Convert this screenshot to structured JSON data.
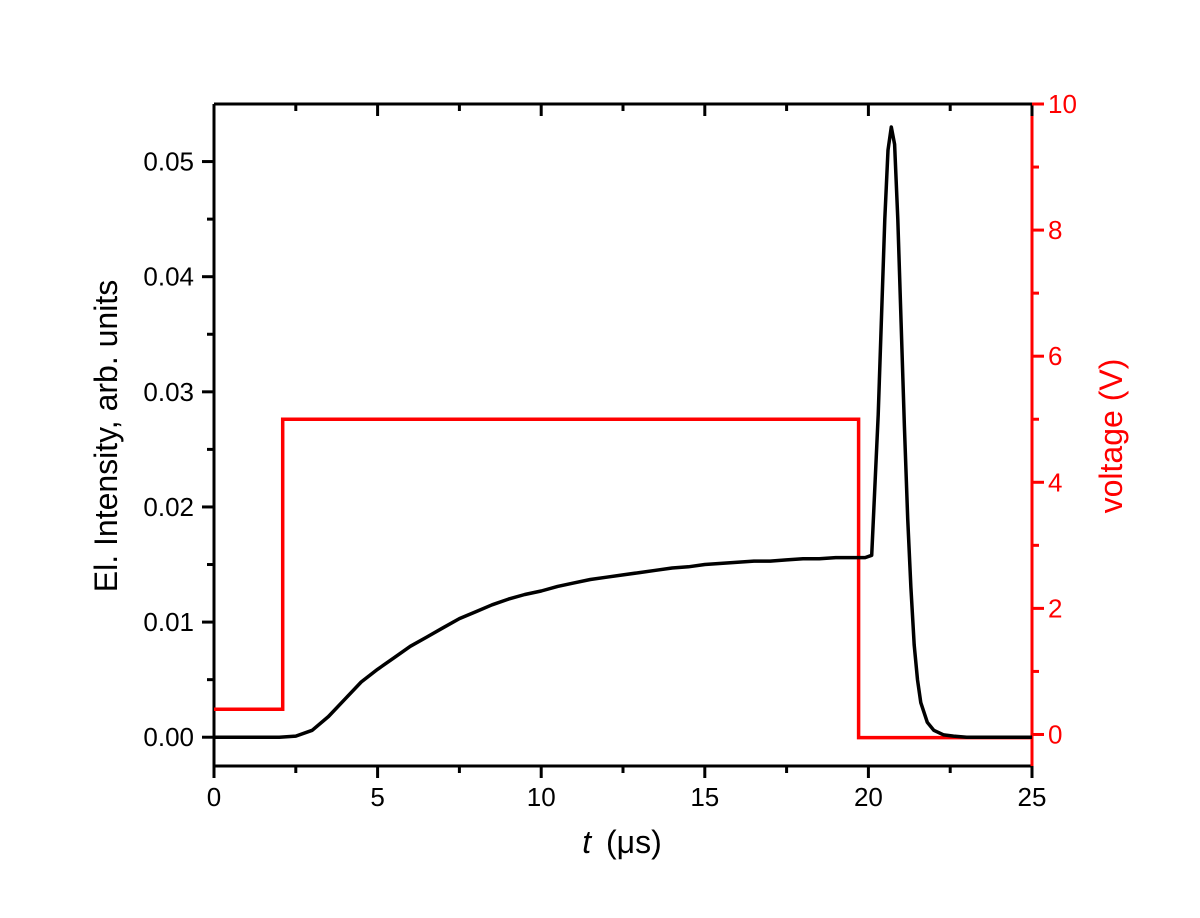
{
  "chart_data": {
    "type": "line",
    "xlabel_italic": "t",
    "xlabel_units": "(μs)",
    "ylabel_left": "El. Intensity, arb. units",
    "ylabel_right": "voltage (V)",
    "xlim": [
      0,
      25
    ],
    "ylim_left": [
      -0.0025,
      0.055
    ],
    "ylim_right": [
      -0.5,
      10
    ],
    "x_ticks": [
      0,
      5,
      10,
      15,
      20,
      25
    ],
    "x_tick_labels": [
      "0",
      "5",
      "10",
      "15",
      "20",
      "25"
    ],
    "y_left_ticks": [
      0.0,
      0.01,
      0.02,
      0.03,
      0.04,
      0.05
    ],
    "y_left_tick_labels": [
      "0.00",
      "0.01",
      "0.02",
      "0.03",
      "0.04",
      "0.05"
    ],
    "y_right_ticks": [
      0,
      2,
      4,
      6,
      8,
      10
    ],
    "y_right_tick_labels": [
      "0",
      "2",
      "4",
      "6",
      "8",
      "10"
    ],
    "grid": false,
    "colors": {
      "intensity": "#000000",
      "voltage": "#ff0000",
      "axis_right": "#ff0000"
    },
    "series": [
      {
        "axis": "left",
        "x": [
          0,
          1,
          2,
          2.5,
          3,
          3.5,
          4,
          4.5,
          5,
          5.5,
          6,
          6.5,
          7,
          7.5,
          8,
          8.5,
          9,
          9.5,
          10,
          10.5,
          11,
          11.5,
          12,
          12.5,
          13,
          13.5,
          14,
          14.5,
          15,
          15.5,
          16,
          16.5,
          17,
          17.5,
          18,
          18.5,
          19,
          19.5,
          19.9,
          20.1,
          20.3,
          20.5,
          20.6,
          20.7,
          20.8,
          20.9,
          21.0,
          21.1,
          21.2,
          21.3,
          21.4,
          21.5,
          21.6,
          21.8,
          22.0,
          22.3,
          22.6,
          23,
          24,
          25
        ],
        "y": [
          0.0,
          0.0,
          0.0,
          0.0001,
          0.0006,
          0.0018,
          0.0033,
          0.0048,
          0.0059,
          0.0069,
          0.0079,
          0.0087,
          0.0095,
          0.0103,
          0.0109,
          0.0115,
          0.012,
          0.0124,
          0.0127,
          0.0131,
          0.0134,
          0.0137,
          0.0139,
          0.0141,
          0.0143,
          0.0145,
          0.0147,
          0.0148,
          0.015,
          0.0151,
          0.0152,
          0.0153,
          0.0153,
          0.0154,
          0.0155,
          0.0155,
          0.0156,
          0.0156,
          0.0156,
          0.0158,
          0.028,
          0.045,
          0.051,
          0.053,
          0.0515,
          0.045,
          0.036,
          0.027,
          0.019,
          0.013,
          0.008,
          0.005,
          0.003,
          0.0013,
          0.0006,
          0.0002,
          0.0001,
          0.0,
          0.0,
          0.0
        ]
      },
      {
        "axis": "right",
        "x": [
          0,
          2.1,
          2.1,
          19.7,
          19.7,
          25
        ],
        "y": [
          0.4,
          0.4,
          5.0,
          5.0,
          -0.05,
          -0.05
        ]
      }
    ]
  }
}
